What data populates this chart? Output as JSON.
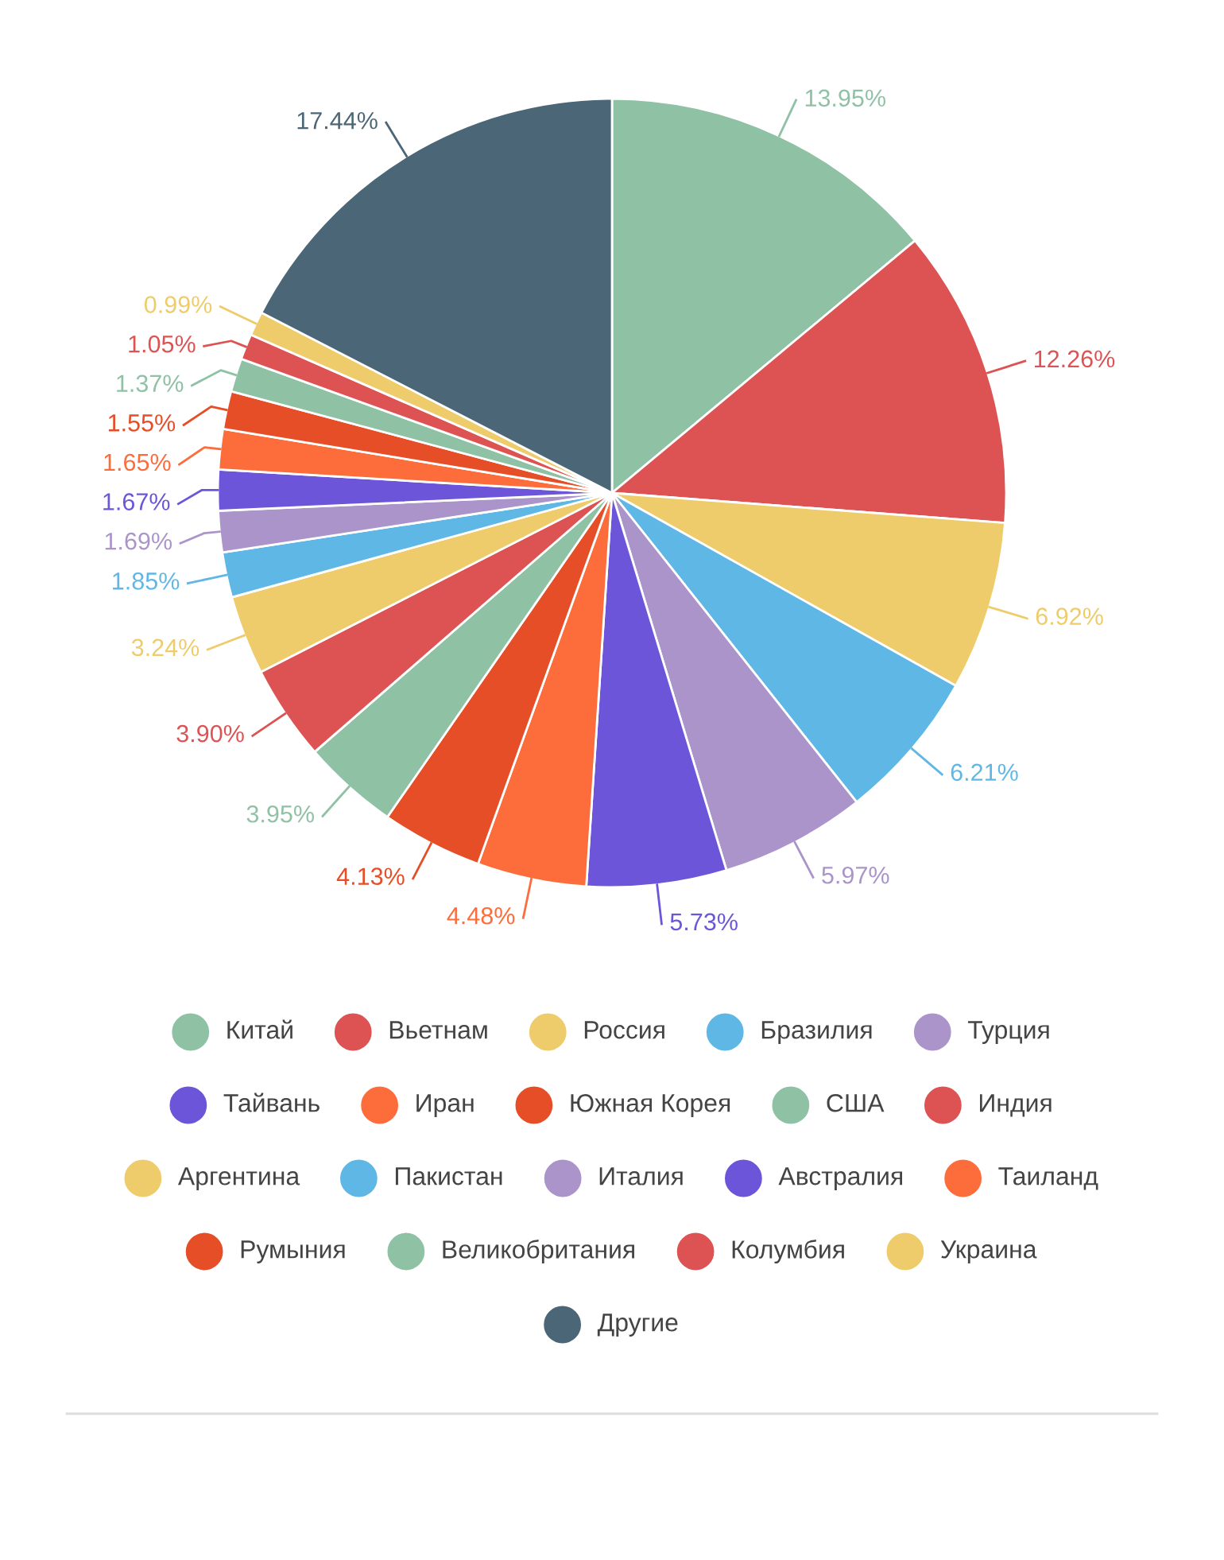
{
  "chart_data": {
    "type": "pie",
    "legend": "bottom",
    "value_labels": [
      "13.95%",
      "12.26%",
      "6.92%",
      "6.21%",
      "5.97%",
      "5.73%",
      "4.48%",
      "4.13%",
      "3.95%",
      "3.90%",
      "3.24%",
      "1.85%",
      "1.69%",
      "1.67%",
      "1.65%",
      "1.55%",
      "1.37%",
      "1.05%",
      "0.99%",
      "17.44%"
    ],
    "categories": [
      "Китай",
      "Вьетнам",
      "Россия",
      "Бразилия",
      "Турция",
      "Тайвань",
      "Иран",
      "Южная Корея",
      "США",
      "Индия",
      "Аргентина",
      "Пакистан",
      "Италия",
      "Австралия",
      "Таиланд",
      "Румыния",
      "Великобритания",
      "Колумбия",
      "Украина",
      "Другие"
    ],
    "values": [
      13.95,
      12.26,
      6.92,
      6.21,
      5.97,
      5.73,
      4.48,
      4.13,
      3.95,
      3.9,
      3.24,
      1.85,
      1.69,
      1.67,
      1.65,
      1.55,
      1.37,
      1.05,
      0.99,
      17.44
    ],
    "colors": [
      "#8fc1a5",
      "#dd5353",
      "#efcc6b",
      "#5fb7e5",
      "#ab94c9",
      "#6c55d9",
      "#fd6c3b",
      "#e54e27",
      "#8fc1a5",
      "#dd5353",
      "#efcc6b",
      "#5fb7e5",
      "#ab94c9",
      "#6c55d9",
      "#fd6c3b",
      "#e54e27",
      "#8fc1a5",
      "#dd5353",
      "#efcc6b",
      "#4a6677"
    ]
  }
}
